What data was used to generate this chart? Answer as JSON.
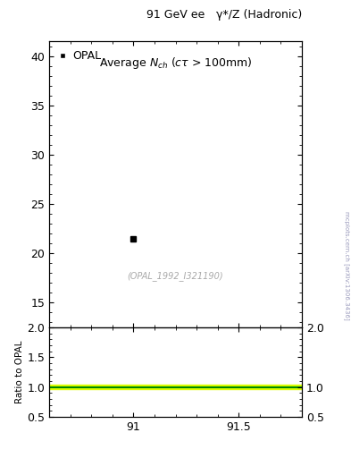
{
  "title_top_left": "91 GeV ee",
  "title_top_right": "γ*/Z (Hadronic)",
  "plot_title": "Average $N_{ch}$ ($c\\tau$ > 100mm)",
  "data_x": [
    91.0
  ],
  "data_y": [
    21.5
  ],
  "data_label": "OPAL",
  "ylabel_ratio": "Ratio to OPAL",
  "xlim": [
    90.6,
    91.8
  ],
  "ylim_main": [
    12.5,
    41.5
  ],
  "ylim_ratio": [
    0.5,
    2.0
  ],
  "yticks_main": [
    15,
    20,
    25,
    30,
    35,
    40
  ],
  "yticks_ratio": [
    0.5,
    1.0,
    1.5,
    2.0
  ],
  "xticks": [
    91.0,
    91.5
  ],
  "ratio_line_color": "#008800",
  "ratio_band_color": "#ddff00",
  "ratio_line_y": 1.0,
  "ratio_band_y_low": 0.96,
  "ratio_band_y_high": 1.04,
  "watermark": "(OPAL_1992_I321190)",
  "side_label": "mcplots.cern.ch [arXiv:1306.3436]",
  "marker_color": "#000000",
  "marker_size": 5,
  "background_color": "#ffffff",
  "tick_fontsize": 9,
  "label_fontsize": 9
}
